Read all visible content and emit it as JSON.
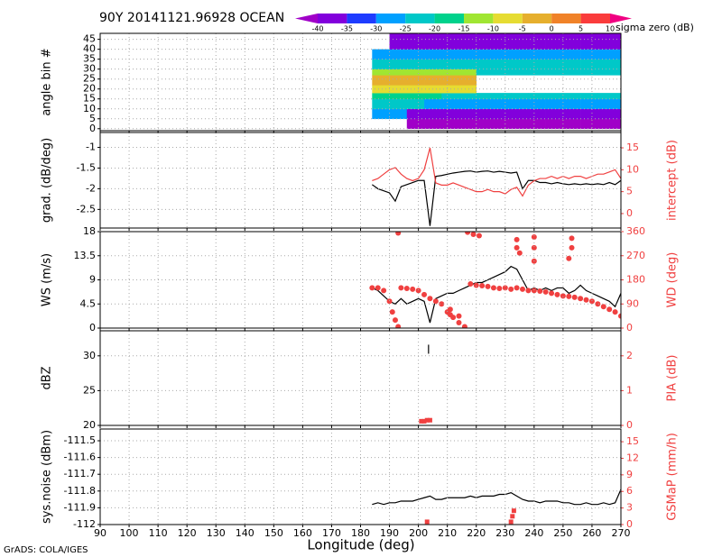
{
  "title": "90Y 20141121.96928 OCEAN",
  "footer": "GrADS: COLA/IGES",
  "colorbar": {
    "label": "sigma zero (dB)",
    "levels": [
      -40,
      -35,
      -30,
      -25,
      -20,
      -15,
      -10,
      -5,
      0,
      5,
      10
    ],
    "colors": [
      "#a000c8",
      "#8200dc",
      "#1e3cff",
      "#00a0ff",
      "#00c8c8",
      "#00d28c",
      "#a0e632",
      "#e6dc32",
      "#e6af2d",
      "#f08228",
      "#fa3c3c",
      "#f00082"
    ]
  },
  "x_axis": {
    "label": "Longitude (deg)",
    "xlim": [
      90,
      270
    ],
    "xticks": [
      90,
      100,
      110,
      120,
      130,
      140,
      150,
      160,
      170,
      180,
      190,
      200,
      210,
      220,
      230,
      240,
      250,
      260,
      270
    ]
  },
  "chart_data": [
    {
      "type": "heatmap",
      "ylabel": "angle bin #",
      "ylim": [
        -1,
        48
      ],
      "yticks": [
        0,
        5,
        10,
        15,
        20,
        25,
        30,
        35,
        40,
        45
      ],
      "grid": true,
      "x_edges": [
        184,
        190,
        196,
        202,
        208,
        214,
        220,
        226,
        232,
        238,
        244,
        250,
        256,
        262,
        270
      ],
      "y_edges": [
        0,
        5,
        10,
        15,
        18,
        22,
        27,
        30,
        35,
        40,
        48
      ],
      "z": [
        [
          null,
          null,
          -42,
          -42,
          -42,
          -42,
          -42,
          -42,
          -42,
          -42,
          -42,
          -42,
          -42,
          -42
        ],
        [
          -30,
          -30,
          -38,
          -40,
          -40,
          -40,
          -40,
          -40,
          -40,
          -40,
          -40,
          -40,
          -40,
          -40
        ],
        [
          -22,
          -22,
          -22,
          -28,
          -30,
          -30,
          -30,
          -30,
          -30,
          -30,
          -30,
          -30,
          -30,
          -30
        ],
        [
          -17,
          -17,
          -17,
          -17,
          -22,
          -22,
          -22,
          -22,
          -22,
          -22,
          -22,
          -22,
          -22,
          -22
        ],
        [
          -8,
          -8,
          -8,
          -8,
          -8,
          -8,
          null,
          null,
          null,
          null,
          null,
          null,
          null,
          null
        ],
        [
          -3,
          -3,
          -3,
          -3,
          -3,
          -3,
          null,
          null,
          null,
          null,
          null,
          null,
          null,
          null
        ],
        [
          -12,
          -12,
          -12,
          -12,
          -12,
          -12,
          -22,
          -22,
          -22,
          -22,
          -22,
          -22,
          -22,
          -22
        ],
        [
          -22,
          -22,
          -22,
          -22,
          -22,
          -22,
          -22,
          -22,
          -22,
          -22,
          -22,
          -22,
          -22,
          -22
        ],
        [
          -28,
          -28,
          -28,
          -28,
          -28,
          -28,
          -28,
          -28,
          -28,
          -28,
          -28,
          -28,
          -28,
          -28
        ],
        [
          null,
          -40,
          -40,
          -40,
          -40,
          -40,
          -40,
          -40,
          -40,
          -40,
          -40,
          -40,
          -40,
          -40
        ]
      ]
    },
    {
      "type": "line",
      "ylabel": "grad. (dB/deg)",
      "y2label": "intercept (dB)",
      "y2color": "#f04040",
      "ylim": [
        -2.95,
        -0.64
      ],
      "yticks": [
        -2.5,
        -2,
        -1.5,
        -1
      ],
      "y2lim": [
        -3.3,
        18.5
      ],
      "y2ticks": [
        0,
        5,
        10,
        15
      ],
      "grid": true,
      "series": [
        {
          "name": "grad",
          "type": "line",
          "color": "#000000",
          "x": [
            184,
            186,
            188,
            190,
            192,
            194,
            196,
            198,
            200,
            202,
            204,
            206,
            208,
            210,
            212,
            214,
            216,
            218,
            220,
            222,
            224,
            226,
            228,
            230,
            232,
            234,
            236,
            238,
            240,
            242,
            244,
            246,
            248,
            250,
            252,
            254,
            256,
            258,
            260,
            262,
            264,
            266,
            268,
            270
          ],
          "values": [
            -1.9,
            -2.0,
            -2.05,
            -2.1,
            -2.3,
            -1.95,
            -1.9,
            -1.85,
            -1.8,
            -1.8,
            -2.9,
            -1.7,
            -1.68,
            -1.65,
            -1.62,
            -1.6,
            -1.58,
            -1.57,
            -1.6,
            -1.58,
            -1.57,
            -1.6,
            -1.58,
            -1.6,
            -1.62,
            -1.6,
            -2.0,
            -1.8,
            -1.8,
            -1.85,
            -1.85,
            -1.88,
            -1.85,
            -1.88,
            -1.9,
            -1.88,
            -1.9,
            -1.88,
            -1.9,
            -1.88,
            -1.9,
            -1.85,
            -1.9,
            -1.8
          ]
        },
        {
          "name": "intercept",
          "type": "line",
          "axis": "y2",
          "color": "#f04040",
          "x": [
            184,
            186,
            188,
            190,
            192,
            194,
            196,
            198,
            200,
            202,
            204,
            206,
            208,
            210,
            212,
            214,
            216,
            218,
            220,
            222,
            224,
            226,
            228,
            230,
            232,
            234,
            236,
            238,
            240,
            242,
            244,
            246,
            248,
            250,
            252,
            254,
            256,
            258,
            260,
            262,
            264,
            266,
            268,
            270
          ],
          "values": [
            7.5,
            8,
            9,
            10,
            10.5,
            9,
            8,
            7.5,
            8,
            10,
            15,
            7,
            6.5,
            6.5,
            7,
            6.5,
            6,
            5.5,
            5,
            5,
            5.5,
            5,
            5,
            4.5,
            5.5,
            6,
            4,
            6.5,
            7.5,
            8,
            8,
            8.5,
            8,
            8.5,
            8,
            8.5,
            8.5,
            8,
            8.5,
            9,
            9,
            9.5,
            10,
            8
          ]
        }
      ]
    },
    {
      "type": "line",
      "ylabel": "WS (m/s)",
      "y2label": "WD (deg)",
      "y2color": "#f04040",
      "ylim": [
        0,
        18
      ],
      "yticks": [
        0,
        4.5,
        9,
        13.5,
        18
      ],
      "y2lim": [
        0,
        360
      ],
      "y2ticks": [
        0,
        90,
        180,
        270,
        360
      ],
      "grid": true,
      "series": [
        {
          "name": "WS",
          "type": "line",
          "color": "#000000",
          "x": [
            184,
            186,
            188,
            190,
            192,
            194,
            196,
            198,
            200,
            202,
            204,
            206,
            208,
            210,
            212,
            214,
            216,
            218,
            220,
            222,
            224,
            226,
            228,
            230,
            232,
            234,
            236,
            238,
            240,
            242,
            244,
            246,
            248,
            250,
            252,
            254,
            256,
            258,
            260,
            262,
            264,
            266,
            268,
            270
          ],
          "values": [
            7.5,
            7,
            6,
            5,
            4.5,
            5.5,
            4.5,
            5,
            5.5,
            5,
            1,
            5.5,
            6,
            6.5,
            6.5,
            7,
            7.5,
            8,
            8.5,
            8.5,
            9,
            9.5,
            10,
            10.5,
            11.5,
            11,
            9,
            7,
            7.5,
            7,
            7.5,
            7,
            7.5,
            7.5,
            6.5,
            7,
            8,
            7,
            6.5,
            6,
            5.5,
            5,
            4,
            6.5
          ]
        },
        {
          "name": "WD",
          "type": "scatter",
          "marker": "circle",
          "axis": "y2",
          "color": "#f04040",
          "x": [
            184,
            186,
            188,
            190,
            191,
            192,
            193,
            194,
            196,
            198,
            200,
            202,
            204,
            206,
            208,
            210,
            212,
            214,
            216,
            218,
            220,
            222,
            224,
            226,
            228,
            230,
            232,
            234,
            236,
            238,
            240,
            242,
            244,
            246,
            248,
            250,
            252,
            254,
            256,
            258,
            260,
            262,
            264,
            266,
            268,
            270,
            193,
            217,
            219,
            221,
            234,
            234,
            235,
            240,
            240,
            240,
            253,
            253,
            252,
            211,
            211,
            214
          ],
          "values": [
            150,
            150,
            140,
            100,
            60,
            30,
            5,
            150,
            148,
            145,
            140,
            125,
            110,
            100,
            90,
            60,
            40,
            20,
            5,
            165,
            160,
            158,
            155,
            150,
            148,
            150,
            145,
            150,
            145,
            140,
            140,
            138,
            135,
            130,
            125,
            120,
            118,
            115,
            110,
            105,
            100,
            90,
            80,
            70,
            60,
            45,
            355,
            358,
            350,
            345,
            330,
            300,
            280,
            340,
            300,
            250,
            335,
            300,
            260,
            70,
            50,
            45
          ]
        }
      ]
    },
    {
      "type": "line",
      "ylabel": "dBZ",
      "y2label": "PIA (dB)",
      "y2color": "#f04040",
      "ylim": [
        20,
        33.6
      ],
      "yticks": [
        20,
        25,
        30
      ],
      "y2lim": [
        0,
        2.72
      ],
      "y2ticks": [
        0,
        1,
        2
      ],
      "grid": true,
      "series": [
        {
          "name": "dBZ",
          "type": "line",
          "color": "#000000",
          "x": [
            203.5,
            203.5
          ],
          "values": [
            30.3,
            31.6
          ]
        },
        {
          "name": "PIA",
          "type": "scatter",
          "marker": "square",
          "axis": "y2",
          "color": "#f04040",
          "x": [
            201,
            202,
            203,
            204
          ],
          "values": [
            0.12,
            0.12,
            0.15,
            0.15
          ]
        }
      ]
    },
    {
      "type": "line",
      "ylabel": "sys.noise (dBm)",
      "y2label": "GSMaP (mm/h)",
      "y2color": "#f04040",
      "ylim": [
        -112,
        -111.43
      ],
      "yticks": [
        -112,
        -111.9,
        -111.8,
        -111.7,
        -111.6,
        -111.5
      ],
      "y2lim": [
        0,
        17.3
      ],
      "y2ticks": [
        0,
        3,
        6,
        9,
        12,
        15
      ],
      "grid": true,
      "series": [
        {
          "name": "sys.noise",
          "type": "line",
          "color": "#000000",
          "x": [
            184,
            186,
            188,
            190,
            192,
            194,
            196,
            198,
            200,
            202,
            204,
            206,
            208,
            210,
            212,
            214,
            216,
            218,
            220,
            222,
            224,
            226,
            228,
            230,
            232,
            234,
            236,
            238,
            240,
            242,
            244,
            246,
            248,
            250,
            252,
            254,
            256,
            258,
            260,
            262,
            264,
            266,
            268,
            270
          ],
          "values": [
            -111.88,
            -111.87,
            -111.88,
            -111.87,
            -111.87,
            -111.86,
            -111.86,
            -111.86,
            -111.85,
            -111.84,
            -111.83,
            -111.85,
            -111.85,
            -111.84,
            -111.84,
            -111.84,
            -111.84,
            -111.83,
            -111.84,
            -111.83,
            -111.83,
            -111.83,
            -111.82,
            -111.82,
            -111.81,
            -111.83,
            -111.85,
            -111.86,
            -111.86,
            -111.87,
            -111.86,
            -111.86,
            -111.86,
            -111.87,
            -111.87,
            -111.88,
            -111.88,
            -111.87,
            -111.88,
            -111.88,
            -111.87,
            -111.88,
            -111.87,
            -111.79
          ]
        },
        {
          "name": "GSMaP",
          "type": "scatter",
          "marker": "square",
          "axis": "y2",
          "color": "#f04040",
          "x": [
            203,
            232,
            232.5,
            233
          ],
          "values": [
            0.5,
            0.5,
            1.5,
            2.5
          ]
        }
      ]
    }
  ]
}
